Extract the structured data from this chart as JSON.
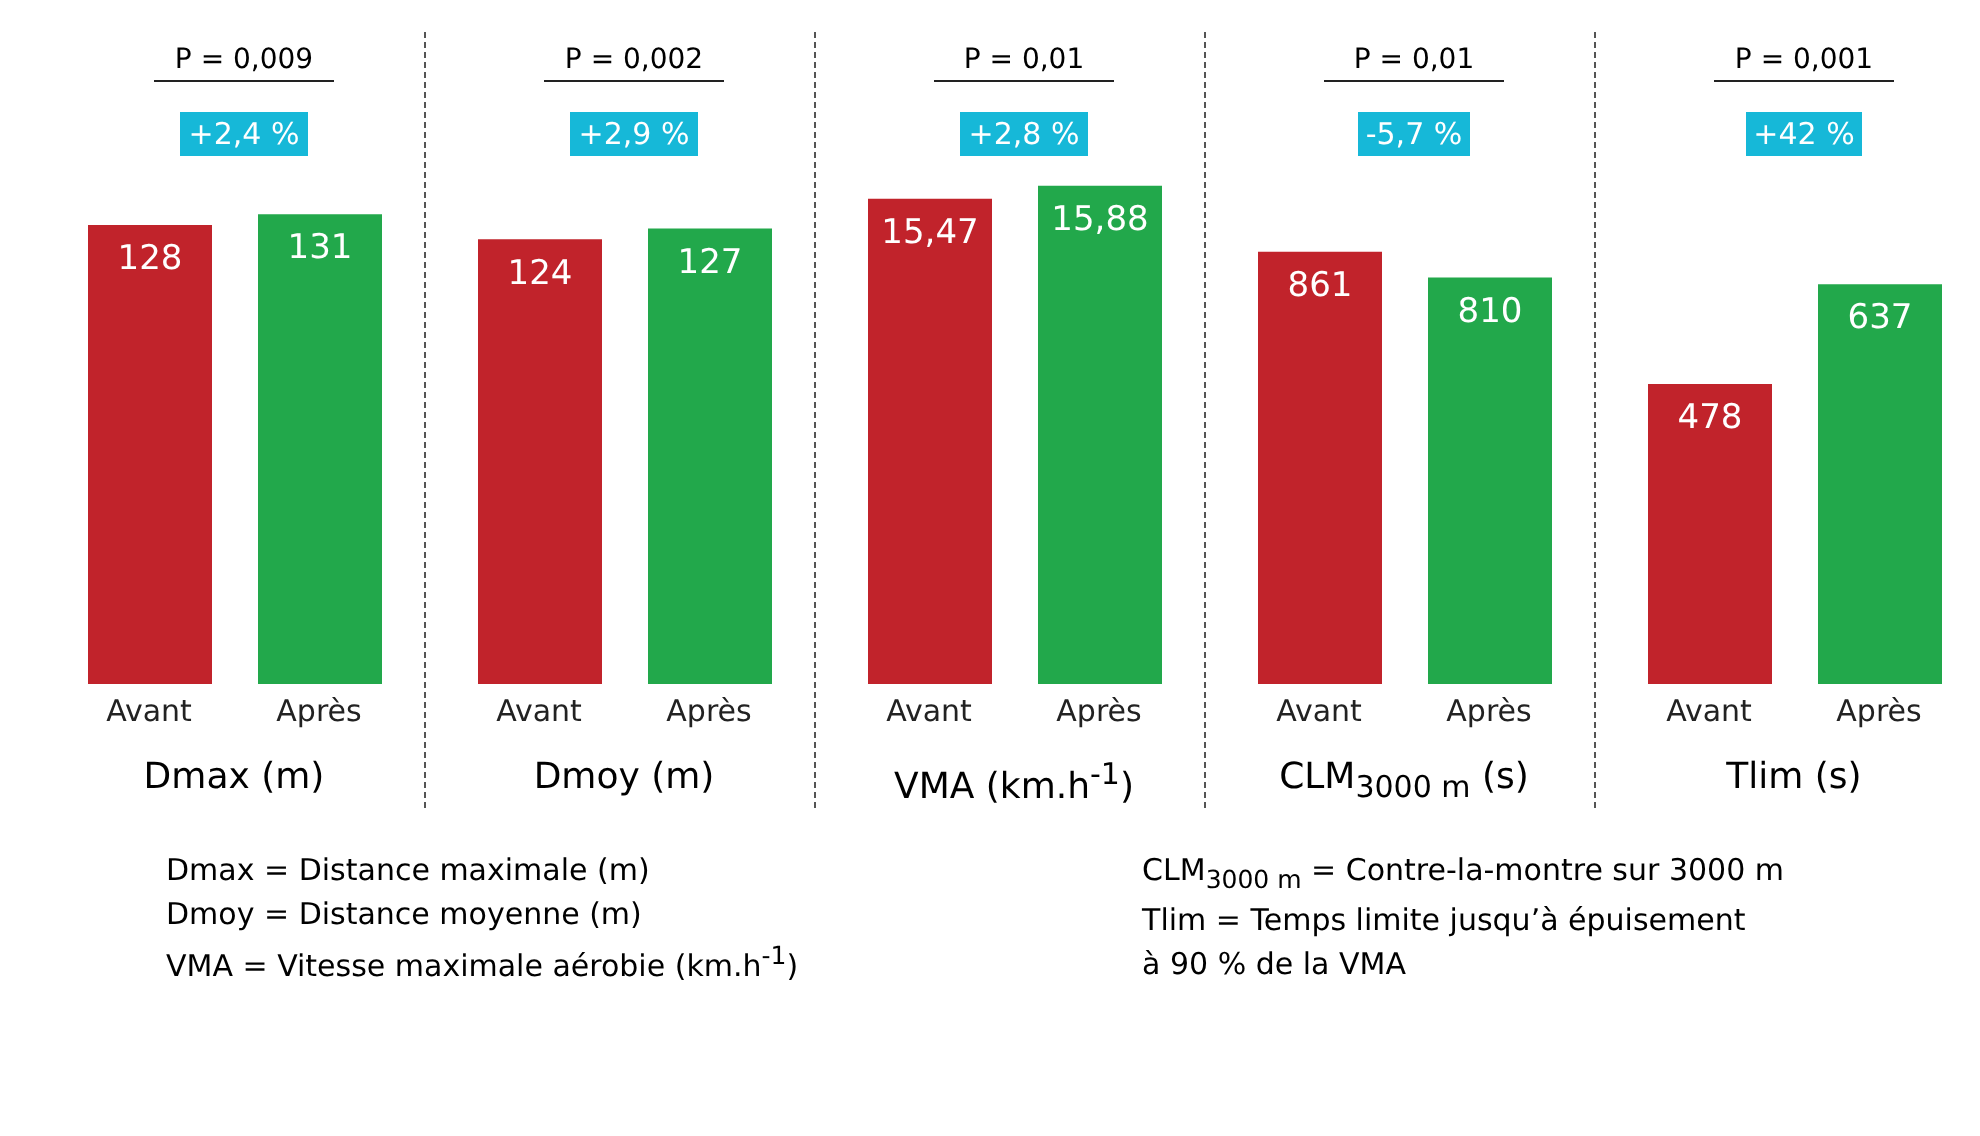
{
  "chart_data": [
    {
      "type": "bar",
      "xlabel": "Dmax (m)",
      "categories": [
        "Avant",
        "Après"
      ],
      "values": [
        128,
        131
      ],
      "value_labels": [
        "128",
        "131"
      ],
      "colors": [
        "#c1232b",
        "#22a84b"
      ],
      "tick_labels": "x",
      "annotations": [
        "P = 0,009",
        "+2,4 %"
      ]
    },
    {
      "type": "bar",
      "xlabel": "Dmoy (m)",
      "categories": [
        "Avant",
        "Après"
      ],
      "values": [
        124,
        127
      ],
      "value_labels": [
        "124",
        "127"
      ],
      "colors": [
        "#c1232b",
        "#22a84b"
      ],
      "tick_labels": "x",
      "annotations": [
        "P = 0,002",
        "+2,9 %"
      ]
    },
    {
      "type": "bar",
      "xlabel": "VMA (km.h$^{-1}$)",
      "categories": [
        "Avant",
        "Après"
      ],
      "values": [
        15.47,
        15.88
      ],
      "value_labels": [
        "15,47",
        "15,88"
      ],
      "colors": [
        "#c1232b",
        "#22a84b"
      ],
      "tick_labels": "x",
      "annotations": [
        "P = 0,01",
        "+2,8 %"
      ]
    },
    {
      "type": "bar",
      "xlabel": "CLM$_{3000 m}$ (s)",
      "categories": [
        "Avant",
        "Après"
      ],
      "values": [
        861,
        810
      ],
      "value_labels": [
        "861",
        "810"
      ],
      "colors": [
        "#c1232b",
        "#22a84b"
      ],
      "tick_labels": "x",
      "annotations": [
        "P = 0,01",
        "-5,7 %"
      ]
    },
    {
      "type": "bar",
      "xlabel": "Tlim (s)",
      "categories": [
        "Avant",
        "Après"
      ],
      "values": [
        478,
        637
      ],
      "value_labels": [
        "478",
        "637"
      ],
      "colors": [
        "#c1232b",
        "#22a84b"
      ],
      "tick_labels": "x",
      "annotations": [
        "P = 0,001",
        "+42 %"
      ]
    },
    {
      "type": "other",
      "annotations": [
        "Dmax = Distance maximale (m)",
        "Dmoy = Distance moyenne (m)",
        "VMA = Vitesse maximale aérobie (km.h$^{-1}$)",
        "CLM$_{3000 m}$ = Contre-la-montre sur 3000 m",
        "Tlim = Temps limite jusqu’à épuisement",
        "à 90 % de la VMA"
      ]
    }
  ]
}
